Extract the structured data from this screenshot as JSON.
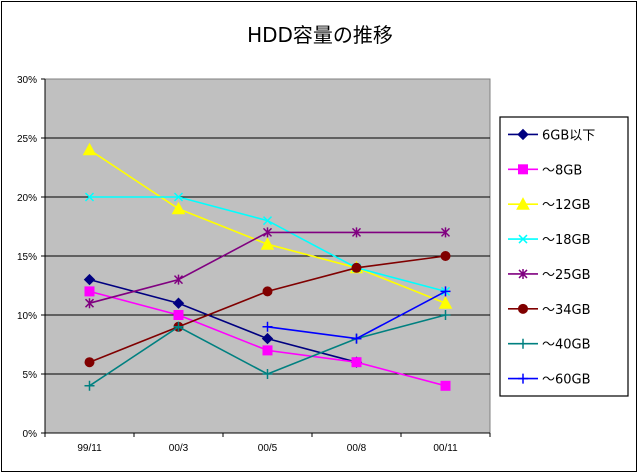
{
  "chart_data": {
    "type": "line",
    "title": "HDD容量の推移",
    "categories": [
      "99/11",
      "00/3",
      "00/5",
      "00/8",
      "00/11"
    ],
    "ylim": [
      0,
      30
    ],
    "yticks": [
      "0%",
      "5%",
      "10%",
      "15%",
      "20%",
      "25%",
      "30%"
    ],
    "ytick_values": [
      0,
      5,
      10,
      15,
      20,
      25,
      30
    ],
    "grid": true,
    "legend": "right",
    "plot_background": "#c0c0c0",
    "series": [
      {
        "name": "6GB以下",
        "values": [
          13,
          11,
          8,
          6,
          null
        ],
        "color": "#000080",
        "marker": "diamond"
      },
      {
        "name": "～8GB",
        "values": [
          12,
          10,
          7,
          6,
          4
        ],
        "color": "#ff00ff",
        "marker": "square"
      },
      {
        "name": "～12GB",
        "values": [
          24,
          19,
          16,
          14,
          11
        ],
        "color": "#ffff00",
        "marker": "triangle"
      },
      {
        "name": "～18GB",
        "values": [
          20,
          20,
          18,
          14,
          12
        ],
        "color": "#00ffff",
        "marker": "x"
      },
      {
        "name": "～25GB",
        "values": [
          11,
          13,
          17,
          17,
          17
        ],
        "color": "#800080",
        "marker": "asterisk"
      },
      {
        "name": "～34GB",
        "values": [
          6,
          9,
          12,
          14,
          15
        ],
        "color": "#800000",
        "marker": "circle"
      },
      {
        "name": "～40GB",
        "values": [
          4,
          9,
          5,
          8,
          10
        ],
        "color": "#008080",
        "marker": "plus"
      },
      {
        "name": "～60GB",
        "values": [
          null,
          null,
          9,
          8,
          12
        ],
        "color": "#0000ff",
        "marker": "plus"
      }
    ]
  }
}
